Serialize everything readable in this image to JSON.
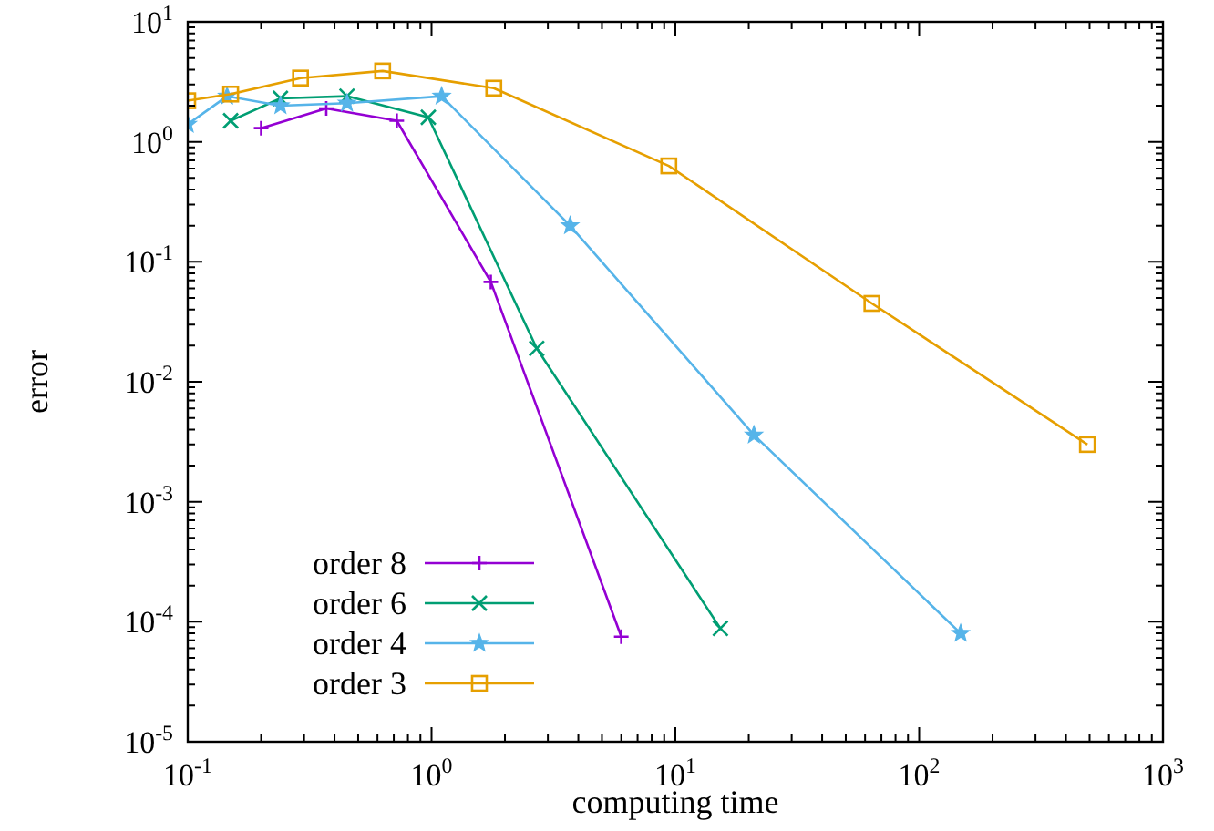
{
  "chart_data": {
    "type": "line",
    "xlabel": "computing time",
    "ylabel": "error",
    "log": "xy",
    "grid": false,
    "legend": "bottom left",
    "line_style": "solid",
    "xlim": [
      0.1,
      1000
    ],
    "ylim": [
      1e-05,
      10
    ],
    "xticks": [
      {
        "value": 0.1,
        "label": "10$^{-1}$"
      },
      {
        "value": 1,
        "label": "10$^{0}$"
      },
      {
        "value": 10,
        "label": "10$^{1}$"
      },
      {
        "value": 100,
        "label": "10$^{2}$"
      },
      {
        "value": 1000,
        "label": "10$^{3}$"
      }
    ],
    "yticks": [
      {
        "value": 1e-05,
        "label": "10$^{-5}$"
      },
      {
        "value": 0.0001,
        "label": "10$^{-4}$"
      },
      {
        "value": 0.001,
        "label": "10$^{-3}$"
      },
      {
        "value": 0.01,
        "label": "10$^{-2}$"
      },
      {
        "value": 0.1,
        "label": "10$^{-1}$"
      },
      {
        "value": 1,
        "label": "10$^{0}$"
      },
      {
        "value": 10,
        "label": "10$^{1}$"
      }
    ],
    "series": [
      {
        "name": "order 8",
        "color": "#9400d3",
        "marker": "cross",
        "x": [
          0.2,
          0.37,
          0.72,
          1.75,
          6.0
        ],
        "values": [
          1.3,
          1.9,
          1.5,
          0.068,
          7.5e-05
        ]
      },
      {
        "name": "order 6",
        "color": "#009e73",
        "marker": "x",
        "x": [
          0.15,
          0.24,
          0.45,
          0.97,
          2.7,
          15.3
        ],
        "values": [
          1.5,
          2.3,
          2.4,
          1.6,
          0.019,
          8.8e-05
        ]
      },
      {
        "name": "order 4",
        "color": "#56b4e9",
        "marker": "star",
        "x": [
          0.1,
          0.145,
          0.24,
          0.45,
          1.1,
          3.7,
          21,
          148
        ],
        "values": [
          1.4,
          2.4,
          2.0,
          2.1,
          2.4,
          0.2,
          0.0036,
          8e-05
        ]
      },
      {
        "name": "order 3",
        "color": "#e69f00",
        "marker": "square",
        "x": [
          0.1,
          0.15,
          0.29,
          0.63,
          1.8,
          9.4,
          64,
          490
        ],
        "values": [
          2.2,
          2.5,
          3.4,
          3.9,
          2.8,
          0.63,
          0.045,
          0.003
        ]
      }
    ]
  }
}
